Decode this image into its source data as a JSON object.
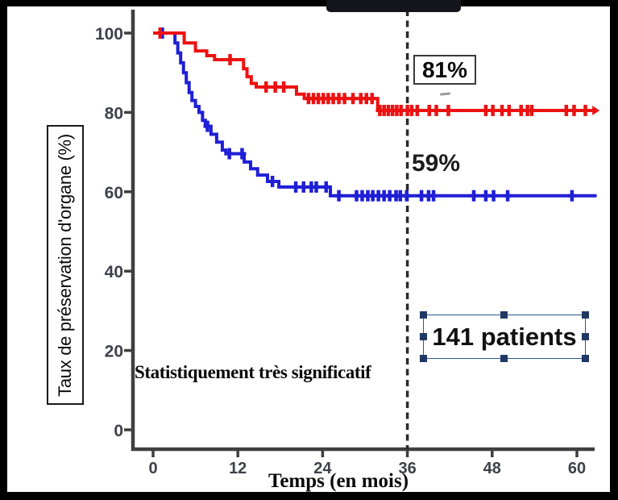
{
  "annotations": {
    "red_label": "81%",
    "blue_label": "59%",
    "significance": "Statistiquement très significatif",
    "patients": "141 patients"
  },
  "colors": {
    "red": "#ec1212",
    "blue": "#1f1fd6",
    "axis": "#3f3f3f",
    "tick_label": "#3d4149",
    "dashed": "#2b2b2b",
    "selection": "#1f3864"
  },
  "chart_data": {
    "type": "line",
    "subtype": "kaplan-meier-step",
    "title": "",
    "xlabel": "Temps (en mois)",
    "ylabel": "Taux de préservation d'organe (%)",
    "x_ticks": [
      0,
      12,
      24,
      36,
      48,
      60
    ],
    "y_ticks": [
      0,
      20,
      40,
      60,
      80,
      100
    ],
    "xlim": [
      0,
      63
    ],
    "ylim": [
      0,
      105
    ],
    "grid": false,
    "reference_line_x": 36,
    "series": [
      {
        "name": "blue-curve",
        "color": "#1f1fd6",
        "final_value_label": "59%",
        "arrow_end": false,
        "steps": [
          [
            0.8,
            100
          ],
          [
            3.1,
            100
          ],
          [
            3.1,
            97.5
          ],
          [
            3.5,
            97.5
          ],
          [
            3.5,
            95
          ],
          [
            3.9,
            95
          ],
          [
            3.9,
            92.5
          ],
          [
            4.3,
            92.5
          ],
          [
            4.3,
            90
          ],
          [
            4.7,
            90
          ],
          [
            4.7,
            87.5
          ],
          [
            5.1,
            87.5
          ],
          [
            5.1,
            85
          ],
          [
            5.5,
            85
          ],
          [
            5.5,
            83
          ],
          [
            6.0,
            83
          ],
          [
            6.0,
            81.5
          ],
          [
            6.5,
            81.5
          ],
          [
            6.5,
            80
          ],
          [
            7.0,
            80
          ],
          [
            7.0,
            78
          ],
          [
            7.4,
            78
          ],
          [
            7.4,
            76.5
          ],
          [
            8.2,
            76.5
          ],
          [
            8.2,
            74.5
          ],
          [
            9.0,
            74.5
          ],
          [
            9.0,
            72.5
          ],
          [
            9.8,
            72.5
          ],
          [
            9.8,
            70.5
          ],
          [
            10.3,
            70.5
          ],
          [
            10.3,
            69.6
          ],
          [
            12.9,
            69.6
          ],
          [
            12.9,
            67.5
          ],
          [
            13.8,
            67.5
          ],
          [
            13.8,
            65.8
          ],
          [
            14.8,
            65.8
          ],
          [
            14.8,
            64.2
          ],
          [
            16.2,
            64.2
          ],
          [
            16.2,
            62.6
          ],
          [
            17.8,
            62.6
          ],
          [
            17.8,
            61.2
          ],
          [
            25.1,
            61.2
          ],
          [
            25.1,
            59
          ],
          [
            62.8,
            59
          ]
        ],
        "censors": [
          [
            1.3,
            100
          ],
          [
            7.7,
            76.5
          ],
          [
            10.8,
            69.6
          ],
          [
            12.6,
            69.6
          ],
          [
            16.9,
            62.6
          ],
          [
            20.2,
            61.2
          ],
          [
            21.3,
            61.2
          ],
          [
            22.4,
            61.2
          ],
          [
            23.1,
            61.2
          ],
          [
            24.5,
            61.2
          ],
          [
            26.3,
            59
          ],
          [
            28.8,
            59
          ],
          [
            29.6,
            59
          ],
          [
            30.4,
            59
          ],
          [
            31.1,
            59
          ],
          [
            31.9,
            59
          ],
          [
            32.7,
            59
          ],
          [
            33.5,
            59
          ],
          [
            34.4,
            59
          ],
          [
            35.0,
            59
          ],
          [
            35.9,
            59
          ],
          [
            38.0,
            59
          ],
          [
            39.0,
            59
          ],
          [
            39.7,
            59
          ],
          [
            45.4,
            59
          ],
          [
            47.1,
            59
          ],
          [
            48.2,
            59
          ],
          [
            50.2,
            59
          ],
          [
            59.3,
            59
          ]
        ]
      },
      {
        "name": "red-curve",
        "color": "#ec1212",
        "final_value_label": "81%",
        "arrow_end": true,
        "steps": [
          [
            0,
            100
          ],
          [
            4.4,
            100
          ],
          [
            4.4,
            97.5
          ],
          [
            6.0,
            97.5
          ],
          [
            6.0,
            95.5
          ],
          [
            7.6,
            95.5
          ],
          [
            7.6,
            94.3
          ],
          [
            8.7,
            94.3
          ],
          [
            8.7,
            93.3
          ],
          [
            12.8,
            93.3
          ],
          [
            12.8,
            91
          ],
          [
            13.3,
            91
          ],
          [
            13.3,
            89
          ],
          [
            13.9,
            89
          ],
          [
            13.9,
            87.3
          ],
          [
            14.6,
            87.3
          ],
          [
            14.6,
            86.4
          ],
          [
            20.3,
            86.4
          ],
          [
            20.3,
            84.6
          ],
          [
            21.4,
            84.6
          ],
          [
            21.4,
            83.5
          ],
          [
            31.8,
            83.5
          ],
          [
            31.8,
            80.5
          ],
          [
            62.3,
            80.5
          ]
        ],
        "censors": [
          [
            1.0,
            100
          ],
          [
            10.9,
            93.3
          ],
          [
            16.0,
            86.4
          ],
          [
            17.3,
            86.4
          ],
          [
            18.5,
            86.4
          ],
          [
            22.0,
            83.5
          ],
          [
            22.7,
            83.5
          ],
          [
            23.4,
            83.5
          ],
          [
            24.1,
            83.5
          ],
          [
            24.8,
            83.5
          ],
          [
            25.5,
            83.5
          ],
          [
            26.3,
            83.5
          ],
          [
            27.1,
            83.5
          ],
          [
            28.3,
            83.5
          ],
          [
            29.4,
            83.5
          ],
          [
            30.2,
            83.5
          ],
          [
            31.0,
            83.5
          ],
          [
            32.1,
            80.5
          ],
          [
            32.7,
            80.5
          ],
          [
            33.3,
            80.5
          ],
          [
            33.9,
            80.5
          ],
          [
            34.5,
            80.5
          ],
          [
            35.1,
            80.5
          ],
          [
            36.0,
            80.5
          ],
          [
            36.6,
            80.5
          ],
          [
            37.4,
            80.5
          ],
          [
            39.1,
            80.5
          ],
          [
            40.1,
            80.5
          ],
          [
            41.8,
            80.5
          ],
          [
            47.1,
            80.5
          ],
          [
            48.1,
            80.5
          ],
          [
            49.4,
            80.5
          ],
          [
            50.4,
            80.5
          ],
          [
            52.1,
            80.5
          ],
          [
            53.0,
            80.5
          ],
          [
            53.6,
            80.5
          ],
          [
            58.5,
            80.5
          ],
          [
            59.6,
            80.5
          ],
          [
            61.2,
            80.5
          ]
        ]
      }
    ]
  }
}
